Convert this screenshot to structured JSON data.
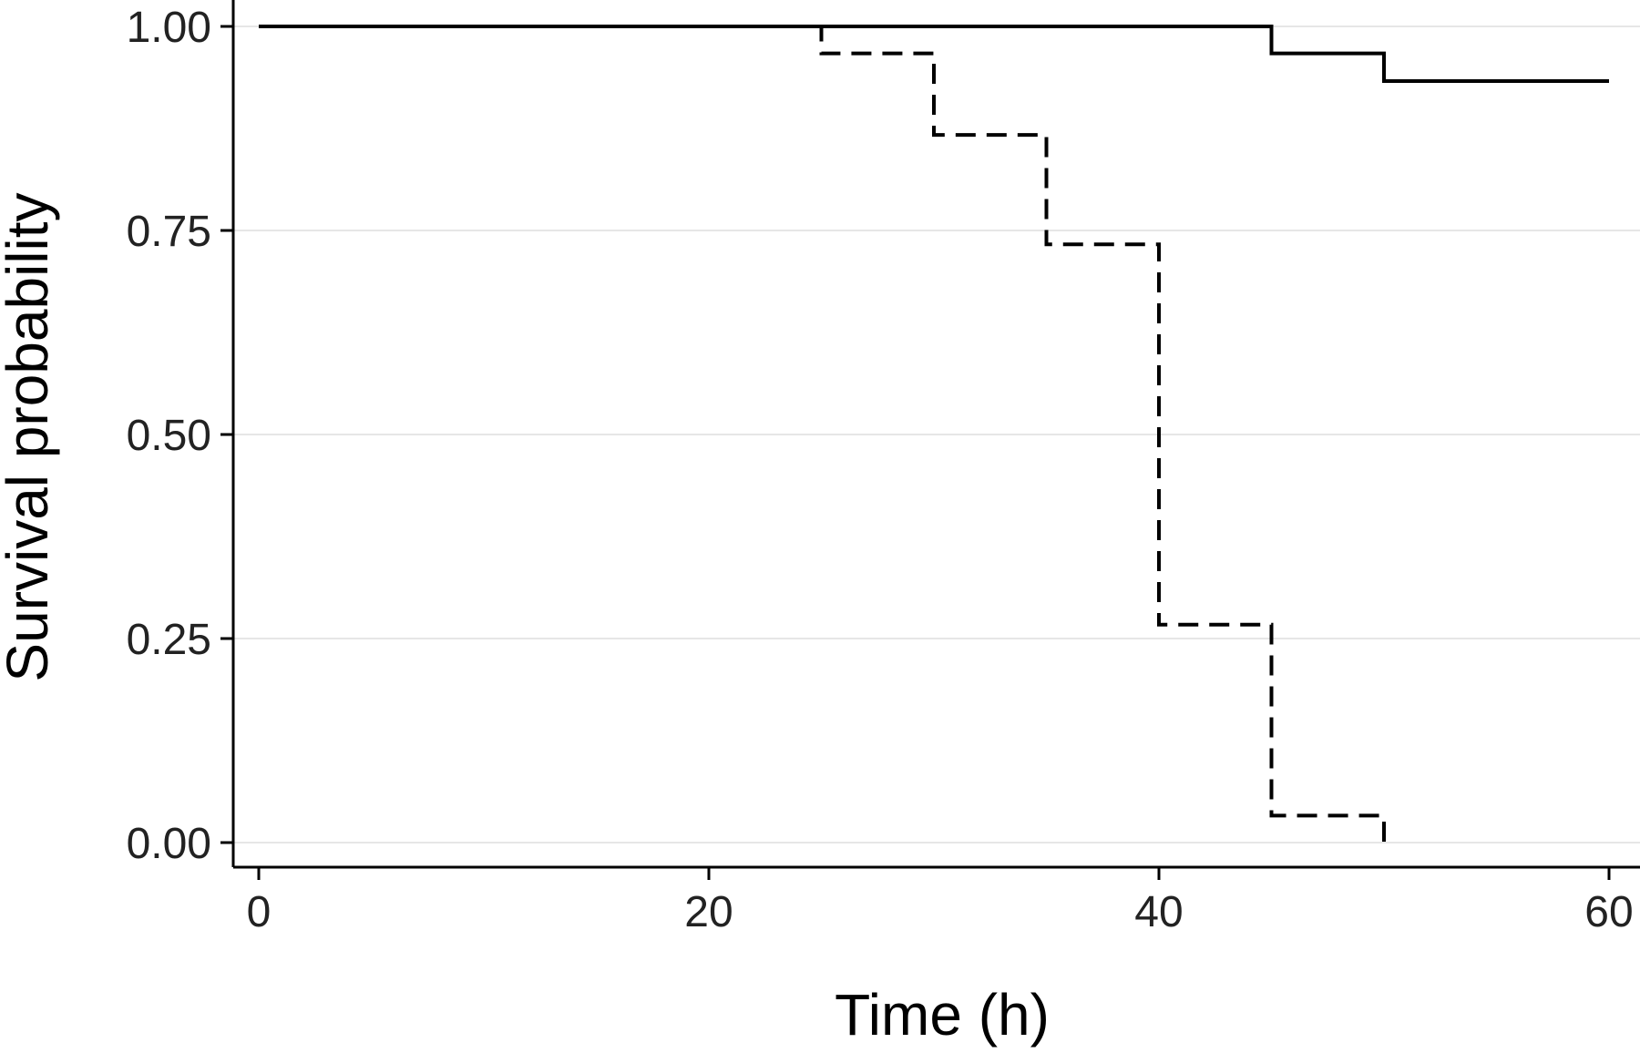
{
  "chart_data": {
    "type": "line",
    "subtype": "step",
    "title": "",
    "xlabel": "Time (h)",
    "ylabel": "Survival probability",
    "xlim": [
      0,
      60
    ],
    "ylim": [
      0,
      1
    ],
    "x_ticks": [
      0,
      20,
      40,
      60
    ],
    "x_tick_labels": [
      "0",
      "20",
      "40",
      "60"
    ],
    "y_ticks": [
      0,
      0.25,
      0.5,
      0.75,
      1
    ],
    "y_tick_labels": [
      "0.00",
      "0.25",
      "0.50",
      "0.75",
      "1.00"
    ],
    "grid": "horizontal",
    "legend": "none",
    "series": [
      {
        "line_style": "solid",
        "color": "#000000",
        "x": [
          0,
          45,
          50,
          60
        ],
        "y": [
          1.0,
          0.967,
          0.933,
          0.933
        ]
      },
      {
        "line_style": "dashed",
        "color": "#000000",
        "x": [
          0,
          25,
          30,
          35,
          40,
          45,
          50
        ],
        "y": [
          1.0,
          0.967,
          0.867,
          0.733,
          0.267,
          0.033,
          0.0
        ]
      }
    ]
  }
}
